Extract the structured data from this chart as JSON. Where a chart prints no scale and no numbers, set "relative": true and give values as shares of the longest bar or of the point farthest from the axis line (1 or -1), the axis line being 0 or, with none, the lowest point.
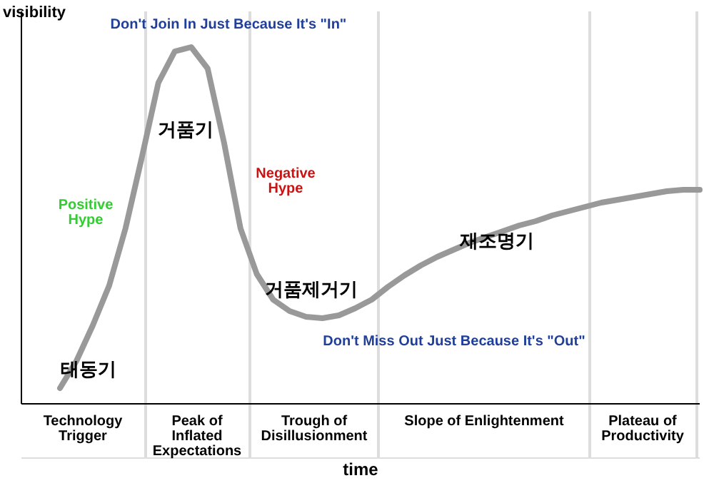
{
  "chart_data": {
    "type": "line",
    "relative": true,
    "xlabel": "time",
    "ylabel": "visibility",
    "categories": [
      null,
      null,
      null,
      null,
      null,
      null,
      null,
      null,
      null,
      null,
      null,
      null,
      null,
      null,
      null,
      null,
      null,
      null,
      null,
      null,
      null,
      null,
      null,
      null,
      null,
      null,
      null,
      null,
      null,
      null,
      null,
      null,
      null,
      null,
      null,
      null,
      null,
      null,
      null,
      null
    ],
    "series": [
      {
        "color": "#999999",
        "values": [
          0.044,
          0.12,
          0.22,
          0.332,
          0.492,
          0.692,
          0.9,
          0.988,
          1,
          0.94,
          0.732,
          0.492,
          0.364,
          0.292,
          0.26,
          0.244,
          0.24,
          0.248,
          0.268,
          0.292,
          0.328,
          0.36,
          0.388,
          0.412,
          0.432,
          0.452,
          0.468,
          0.484,
          0.5,
          0.512,
          0.528,
          0.54,
          0.552,
          0.564,
          0.572,
          0.58,
          0.588,
          0.596,
          0.6,
          0.6
        ]
      }
    ],
    "annotations": [
      "Don't Join In Just Because It's \"In\"",
      "거품기",
      "Positive Hype",
      "Negative Hype",
      "재조명기",
      "거품제거기",
      "Don't Miss Out Just Because It's \"Out\"",
      "태동기",
      "Technology Trigger",
      "Peak of Inflated Expectations",
      "Trough of Disillusionment",
      "Slope of Enlightenment",
      "Plateau of Productivity"
    ]
  }
}
